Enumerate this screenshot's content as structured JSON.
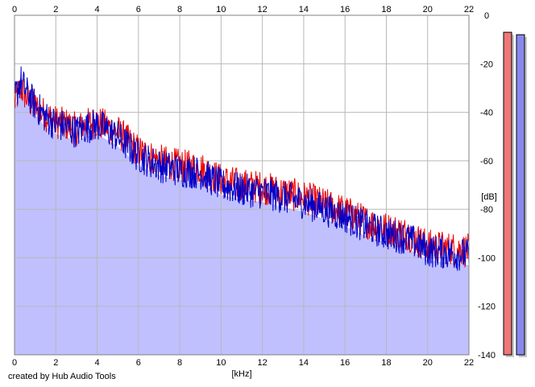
{
  "credit": "created by Hub Audio Tools",
  "chart_data": {
    "type": "line",
    "title": "",
    "xlabel": "[kHz]",
    "ylabel": "[dB]",
    "xlim": [
      0,
      22
    ],
    "ylim": [
      -140,
      0
    ],
    "x_ticks": [
      0,
      2,
      4,
      6,
      8,
      10,
      12,
      14,
      16,
      18,
      20,
      22
    ],
    "y_ticks": [
      0,
      -20,
      -40,
      -60,
      -80,
      -100,
      -120,
      -140
    ],
    "x_tick_labels": [
      "0",
      "2",
      "4",
      "6",
      "8",
      "10",
      "12",
      "14",
      "16",
      "18",
      "20",
      "22"
    ],
    "y_tick_labels": [
      "0",
      "-20",
      "-40",
      "-60",
      "-80",
      "-100",
      "-120",
      "-140"
    ],
    "grid": true,
    "series": [
      {
        "name": "",
        "color": "#ee0000",
        "x": [
          0,
          0.3,
          0.6,
          1,
          1.5,
          2,
          2.5,
          3,
          3.5,
          4,
          5,
          6,
          7,
          8,
          9,
          10,
          11,
          12,
          13,
          14,
          15,
          16,
          17,
          18,
          19,
          20,
          21,
          22
        ],
        "y": [
          -36,
          -30,
          -34,
          -38,
          -41,
          -44,
          -45,
          -47,
          -45,
          -44,
          -48,
          -56,
          -60,
          -62,
          -63,
          -68,
          -70,
          -71,
          -73,
          -75,
          -78,
          -81,
          -85,
          -88,
          -90,
          -95,
          -96,
          -97
        ]
      },
      {
        "name": "",
        "color": "#0000cc",
        "x": [
          0,
          0.3,
          0.6,
          1,
          1.5,
          2,
          2.5,
          3,
          3.5,
          4,
          5,
          6,
          7,
          8,
          9,
          10,
          11,
          12,
          13,
          14,
          15,
          16,
          17,
          18,
          19,
          20,
          21,
          22
        ],
        "y": [
          -34,
          -27,
          -32,
          -37,
          -42,
          -45,
          -46,
          -48,
          -46,
          -45,
          -50,
          -58,
          -62,
          -64,
          -65,
          -70,
          -72,
          -73,
          -75,
          -77,
          -80,
          -83,
          -87,
          -90,
          -92,
          -97,
          -98,
          -99
        ]
      }
    ],
    "level_meters": [
      {
        "color": "#ee7777",
        "top_db": -7
      },
      {
        "color": "#8888ee",
        "top_db": -8
      }
    ],
    "fill_color": "#c0c0ff"
  }
}
